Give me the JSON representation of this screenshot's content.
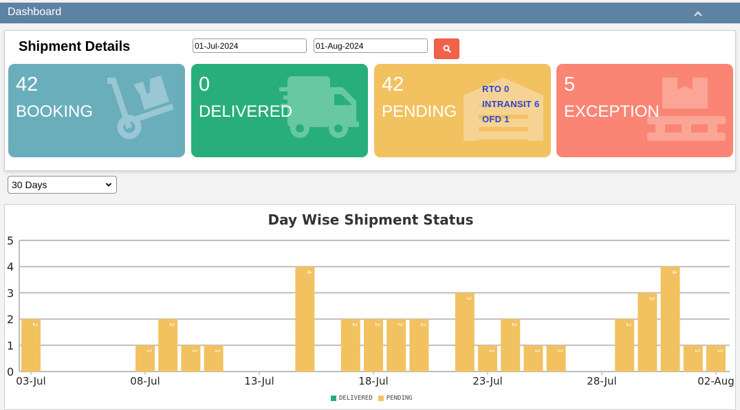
{
  "header": {
    "title": "Dashboard",
    "collapse_icon": "chevron-up-icon"
  },
  "shipment": {
    "title": "Shipment Details",
    "from_date": "01-Jul-2024",
    "to_date": "01-Aug-2024",
    "search_icon": "search-icon"
  },
  "cards": [
    {
      "count": "42",
      "label": "BOOKING",
      "color": "#6aaebc",
      "icon": "hand-truck-icon"
    },
    {
      "count": "0",
      "label": "DELIVERED",
      "color": "#28ae7b",
      "icon": "shipping-truck-icon"
    },
    {
      "count": "42",
      "label": "PENDING",
      "color": "#f2c261",
      "icon": "warehouse-icon",
      "sub": [
        "RTO 0",
        "INTRANSIT 6",
        "OFD 1"
      ]
    },
    {
      "count": "5",
      "label": "EXCEPTION",
      "color": "#fa8574",
      "icon": "pallet-box-icon"
    }
  ],
  "range": {
    "selected": "30 Days"
  },
  "chart": {
    "title": "Day Wise Shipment Status",
    "legend": [
      {
        "label": "DELIVERED",
        "color": "#28ae7b"
      },
      {
        "label": "PENDING",
        "color": "#f2c261"
      }
    ]
  },
  "chart_data": {
    "type": "bar",
    "title": "Day Wise Shipment Status",
    "xlabel": "",
    "ylabel": "",
    "ylim": [
      0,
      5
    ],
    "yticks": [
      0,
      1,
      2,
      3,
      4,
      5
    ],
    "grid": true,
    "legend_position": "bottom",
    "xtick_labels": [
      "03-Jul",
      "08-Jul",
      "13-Jul",
      "18-Jul",
      "23-Jul",
      "28-Jul",
      "02-Aug"
    ],
    "categories": [
      "03-Jul",
      "04-Jul",
      "05-Jul",
      "06-Jul",
      "07-Jul",
      "08-Jul",
      "09-Jul",
      "10-Jul",
      "11-Jul",
      "12-Jul",
      "13-Jul",
      "14-Jul",
      "15-Jul",
      "16-Jul",
      "17-Jul",
      "18-Jul",
      "19-Jul",
      "20-Jul",
      "21-Jul",
      "22-Jul",
      "23-Jul",
      "24-Jul",
      "25-Jul",
      "26-Jul",
      "27-Jul",
      "28-Jul",
      "29-Jul",
      "30-Jul",
      "31-Jul",
      "01-Aug",
      "02-Aug"
    ],
    "series": [
      {
        "name": "DELIVERED",
        "color": "#28ae7b",
        "values": [
          0,
          0,
          0,
          0,
          0,
          0,
          0,
          0,
          0,
          0,
          0,
          0,
          0,
          0,
          0,
          0,
          0,
          0,
          0,
          0,
          0,
          0,
          0,
          0,
          0,
          0,
          0,
          0,
          0,
          0,
          0
        ]
      },
      {
        "name": "PENDING",
        "color": "#f2c261",
        "values": [
          2,
          0,
          0,
          0,
          0,
          1,
          2,
          1,
          1,
          0,
          0,
          0,
          4,
          0,
          2,
          2,
          2,
          2,
          0,
          3,
          1,
          2,
          1,
          1,
          0,
          0,
          2,
          3,
          4,
          1,
          1
        ]
      }
    ]
  }
}
